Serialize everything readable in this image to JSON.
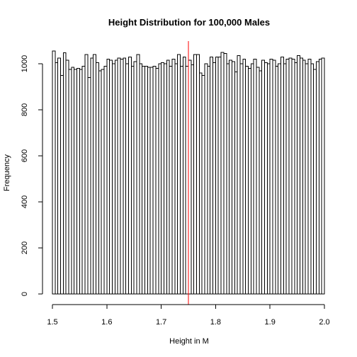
{
  "chart_data": {
    "type": "bar",
    "title": "Height Distribution for 100,000 Males",
    "xlabel": "Height in M",
    "ylabel": "Frequency",
    "xlim": [
      1.5,
      2.0
    ],
    "ylim": [
      0,
      1060
    ],
    "bin_width": 0.005,
    "x_ticks": [
      {
        "value": 1.5,
        "label": "1.5"
      },
      {
        "value": 1.6,
        "label": "1.6"
      },
      {
        "value": 1.7,
        "label": "1.7"
      },
      {
        "value": 1.8,
        "label": "1.8"
      },
      {
        "value": 1.9,
        "label": "1.9"
      },
      {
        "value": 2.0,
        "label": "2.0"
      }
    ],
    "y_ticks": [
      {
        "value": 0,
        "label": "0"
      },
      {
        "value": 200,
        "label": "200"
      },
      {
        "value": 400,
        "label": "400"
      },
      {
        "value": 600,
        "label": "600"
      },
      {
        "value": 800,
        "label": "800"
      },
      {
        "value": 1000,
        "label": "1000"
      }
    ],
    "bin_starts": [
      1.5,
      1.505,
      1.51,
      1.515,
      1.52,
      1.525,
      1.53,
      1.535,
      1.54,
      1.545,
      1.55,
      1.555,
      1.56,
      1.565,
      1.57,
      1.575,
      1.58,
      1.585,
      1.59,
      1.595,
      1.6,
      1.605,
      1.61,
      1.615,
      1.62,
      1.625,
      1.63,
      1.635,
      1.64,
      1.645,
      1.65,
      1.655,
      1.66,
      1.665,
      1.67,
      1.675,
      1.68,
      1.685,
      1.69,
      1.695,
      1.7,
      1.705,
      1.71,
      1.715,
      1.72,
      1.725,
      1.73,
      1.735,
      1.74,
      1.745,
      1.75,
      1.755,
      1.76,
      1.765,
      1.77,
      1.775,
      1.78,
      1.785,
      1.79,
      1.795,
      1.8,
      1.805,
      1.81,
      1.815,
      1.82,
      1.825,
      1.83,
      1.835,
      1.84,
      1.845,
      1.85,
      1.855,
      1.86,
      1.865,
      1.87,
      1.875,
      1.88,
      1.885,
      1.89,
      1.895,
      1.9,
      1.905,
      1.91,
      1.915,
      1.92,
      1.925,
      1.93,
      1.935,
      1.94,
      1.945,
      1.95,
      1.955,
      1.96,
      1.965,
      1.97,
      1.975,
      1.98,
      1.985,
      1.99,
      1.995
    ],
    "values": [
      1055,
      1005,
      1025,
      950,
      1048,
      1015,
      975,
      985,
      975,
      980,
      975,
      990,
      1040,
      940,
      1025,
      1040,
      1005,
      970,
      975,
      990,
      1020,
      1015,
      1000,
      1015,
      1025,
      1020,
      1025,
      1000,
      1030,
      990,
      1010,
      1040,
      1000,
      990,
      990,
      985,
      985,
      990,
      980,
      1000,
      1005,
      1000,
      1015,
      990,
      1020,
      1000,
      1040,
      990,
      1030,
      990,
      1015,
      995,
      1040,
      1040,
      960,
      950,
      1000,
      990,
      1030,
      1005,
      1030,
      1030,
      1050,
      1045,
      1000,
      1015,
      1010,
      965,
      1035,
      1000,
      1020,
      990,
      980,
      1000,
      1020,
      985,
      970,
      1015,
      1005,
      1000,
      1020,
      1015,
      990,
      1000,
      1030,
      1000,
      1020,
      1025,
      1020,
      1005,
      1035,
      1025,
      1015,
      1000,
      1020,
      1000,
      975,
      1010,
      1020,
      1025
    ]
  }
}
